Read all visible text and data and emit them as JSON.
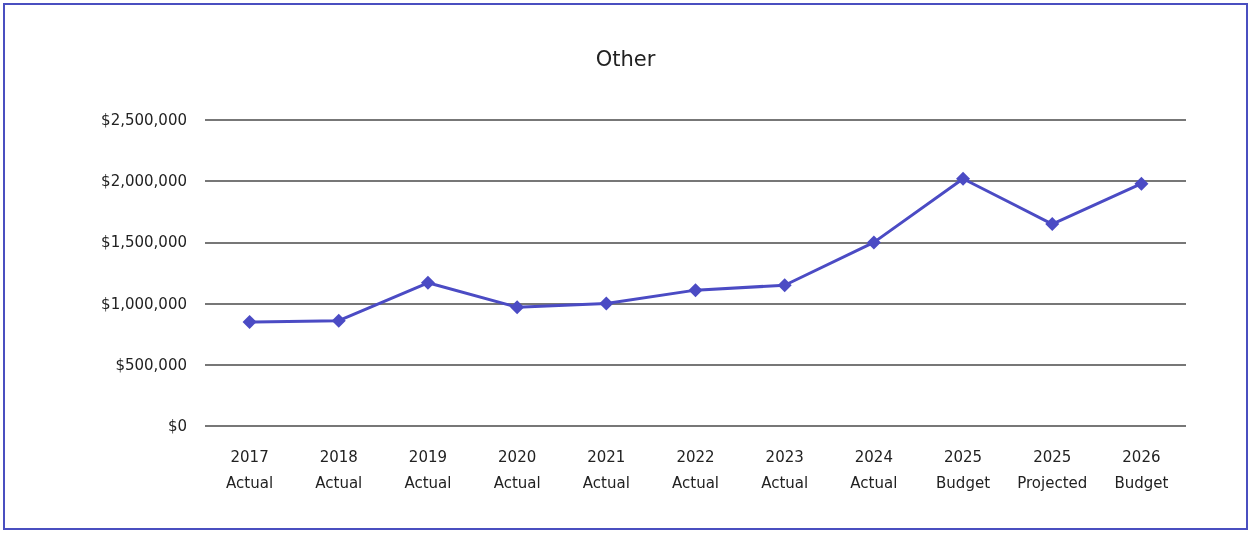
{
  "chart_data": {
    "type": "line",
    "title": "Other",
    "categories": [
      "2017\nActual",
      "2018\nActual",
      "2019\nActual",
      "2020\nActual",
      "2021\nActual",
      "2022\nActual",
      "2023\nActual",
      "2024\nActual",
      "2025\nBudget",
      "2025\nProjected",
      "2026\nBudget"
    ],
    "series": [
      {
        "color": "#4b4bc4",
        "values": [
          850000,
          860000,
          1170000,
          970000,
          1000000,
          1110000,
          1150000,
          1500000,
          2020000,
          1650000,
          1980000
        ]
      }
    ],
    "ylim": [
      0,
      2500000
    ],
    "yticks": [
      {
        "value": 0,
        "label": "$0"
      },
      {
        "value": 500000,
        "label": "$500,000"
      },
      {
        "value": 1000000,
        "label": "$1,000,000"
      },
      {
        "value": 1500000,
        "label": "$1,500,000"
      },
      {
        "value": 2000000,
        "label": "$2,000,000"
      },
      {
        "value": 2500000,
        "label": "$2,500,000"
      }
    ],
    "grid": "y",
    "marker": "diamond",
    "line_style": "solid"
  }
}
